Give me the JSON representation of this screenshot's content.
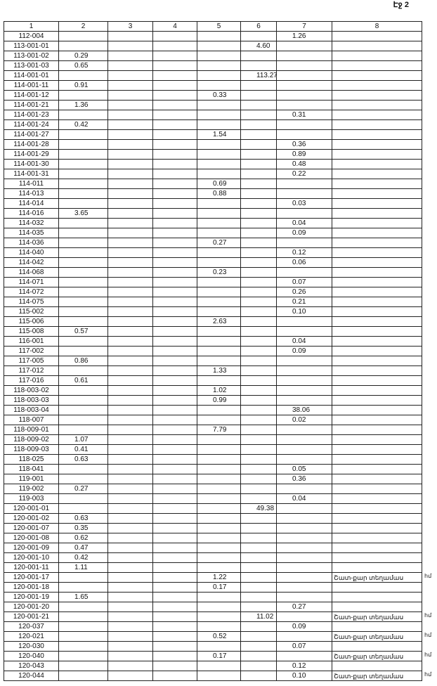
{
  "header": {
    "page": "Էջ 2"
  },
  "table": {
    "columns": [
      "1",
      "2",
      "3",
      "4",
      "5",
      "6",
      "7",
      "8"
    ],
    "rows": [
      {
        "1": "112-004",
        "7": "1.26"
      },
      {
        "1": "113-001-01",
        "6": "4.60"
      },
      {
        "1": "113-001-02",
        "2": "0.29"
      },
      {
        "1": "113-001-03",
        "2": "0.65"
      },
      {
        "1": "114-001-01",
        "6": "113.27"
      },
      {
        "1": "114-001-11",
        "2": "0.91"
      },
      {
        "1": "114-001-12",
        "5": "0.33"
      },
      {
        "1": "114-001-21",
        "2": "1.36"
      },
      {
        "1": "114-001-23",
        "7": "0.31"
      },
      {
        "1": "114-001-24",
        "2": "0.42"
      },
      {
        "1": "114-001-27",
        "5": "1.54"
      },
      {
        "1": "114-001-28",
        "7": "0.36"
      },
      {
        "1": "114-001-29",
        "7": "0.89"
      },
      {
        "1": "114-001-30",
        "7": "0.48"
      },
      {
        "1": "114-001-31",
        "7": "0.22"
      },
      {
        "1": "114-011",
        "5": "0.69"
      },
      {
        "1": "114-013",
        "5": "0.88"
      },
      {
        "1": "114-014",
        "7": "0.03"
      },
      {
        "1": "114-016",
        "2": "3.65"
      },
      {
        "1": "114-032",
        "7": "0.04"
      },
      {
        "1": "114-035",
        "7": "0.09"
      },
      {
        "1": "114-036",
        "5": "0.27"
      },
      {
        "1": "114-040",
        "7": "0.12"
      },
      {
        "1": "114-042",
        "7": "0.06"
      },
      {
        "1": "114-068",
        "5": "0.23"
      },
      {
        "1": "114-071",
        "7": "0.07"
      },
      {
        "1": "114-072",
        "7": "0.26"
      },
      {
        "1": "114-075",
        "7": "0.21"
      },
      {
        "1": "115-002",
        "7": "0.10"
      },
      {
        "1": "115-006",
        "5": "2.63"
      },
      {
        "1": "115-008",
        "2": "0.57"
      },
      {
        "1": "116-001",
        "7": "0.04"
      },
      {
        "1": "117-002",
        "7": "0.09"
      },
      {
        "1": "117-005",
        "2": "0.86"
      },
      {
        "1": "117-012",
        "5": "1.33"
      },
      {
        "1": "117-016",
        "2": "0.61"
      },
      {
        "1": "118-003-02",
        "5": "1.02"
      },
      {
        "1": "118-003-03",
        "5": "0.99"
      },
      {
        "1": "118-003-04",
        "7": "38.06"
      },
      {
        "1": "118-007",
        "7": "0.02"
      },
      {
        "1": "118-009-01",
        "5": "7.79"
      },
      {
        "1": "118-009-02",
        "2": "1.07"
      },
      {
        "1": "118-009-03",
        "2": "0.41"
      },
      {
        "1": "118-025",
        "2": "0.63"
      },
      {
        "1": "118-041",
        "7": "0.05"
      },
      {
        "1": "119-001",
        "7": "0.36"
      },
      {
        "1": "119-002",
        "2": "0.27"
      },
      {
        "1": "119-003",
        "7": "0.04"
      },
      {
        "1": "120-001-01",
        "6": "49.38"
      },
      {
        "1": "120-001-02",
        "2": "0.63"
      },
      {
        "1": "120-001-07",
        "2": "0.35"
      },
      {
        "1": "120-001-08",
        "2": "0.62"
      },
      {
        "1": "120-001-09",
        "2": "0.47"
      },
      {
        "1": "120-001-10",
        "2": "0.42"
      },
      {
        "1": "120-001-11",
        "2": "1.11"
      },
      {
        "1": "120-001-17",
        "5": "1.22",
        "8": "Շատ-քար տեղամաս",
        "note": "հմ"
      },
      {
        "1": "120-001-18",
        "5": "0.17"
      },
      {
        "1": "120-001-19",
        "2": "1.65"
      },
      {
        "1": "120-001-20",
        "7": "0.27"
      },
      {
        "1": "120-001-21",
        "6": "11.02",
        "8": "Շատ-քար տեղամաս",
        "note": "հմ"
      },
      {
        "1": "120-037",
        "7": "0.09"
      },
      {
        "1": "120-021",
        "5": "0.52",
        "8": "Շատ-քար տեղամաս",
        "note": "հմ"
      },
      {
        "1": "120-030",
        "7": "0.07"
      },
      {
        "1": "120-040",
        "5": "0.17",
        "8": "Շատ-քար տեղամաս",
        "note": "հմ"
      },
      {
        "1": "120-043",
        "7": "0.12"
      },
      {
        "1": "120-044",
        "7": "0.10",
        "8": "Շատ-քար տեղամաս",
        "note": "հմ"
      }
    ]
  }
}
